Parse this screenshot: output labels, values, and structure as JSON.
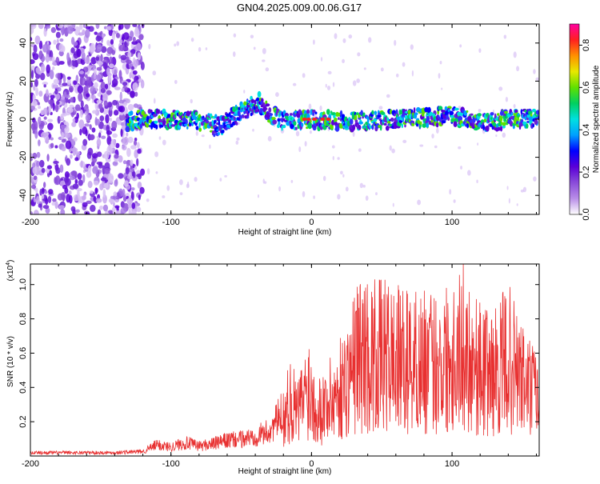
{
  "title": "GN04.2025.009.00.06.G17",
  "chart_data": [
    {
      "type": "heatmap",
      "xlabel": "Height of straight line (km)",
      "ylabel": "Frequency (Hz)",
      "xlim": [
        -200,
        162
      ],
      "ylim": [
        -50,
        50
      ],
      "xticks": [
        -200,
        -100,
        0,
        100
      ],
      "yticks": [
        -40,
        -20,
        0,
        20,
        40
      ],
      "colorbar": {
        "label": "Normalized spectral amplitude",
        "range": [
          0,
          0.9
        ],
        "ticks": [
          0.0,
          0.2,
          0.4,
          0.6,
          0.8
        ],
        "colors": [
          "#ffffff",
          "#b98ee8",
          "#8a4cd9",
          "#5a00d8",
          "#0000ff",
          "#00a0ff",
          "#00e0e0",
          "#00d060",
          "#60e000",
          "#e8e800",
          "#ff9000",
          "#ff2020",
          "#ff00a0"
        ]
      },
      "ridge": [
        {
          "x": -130,
          "f": -1
        },
        {
          "x": -120,
          "f": 0
        },
        {
          "x": -100,
          "f": 0
        },
        {
          "x": -80,
          "f": -1
        },
        {
          "x": -65,
          "f": -3
        },
        {
          "x": -55,
          "f": 2
        },
        {
          "x": -45,
          "f": 6
        },
        {
          "x": -38,
          "f": 9
        },
        {
          "x": -30,
          "f": 3
        },
        {
          "x": -20,
          "f": -1
        },
        {
          "x": 0,
          "f": 0
        },
        {
          "x": 20,
          "f": -1
        },
        {
          "x": 40,
          "f": -1
        },
        {
          "x": 60,
          "f": 0
        },
        {
          "x": 80,
          "f": 1
        },
        {
          "x": 100,
          "f": 2
        },
        {
          "x": 120,
          "f": -2
        },
        {
          "x": 140,
          "f": 0
        },
        {
          "x": 162,
          "f": 1
        }
      ]
    },
    {
      "type": "line",
      "xlabel": "Height of straight line (km)",
      "ylabel": "SNR (10 * v/v)",
      "exponent": "(x10",
      "exponent_power": "4",
      "exponent_close": ")",
      "xlim": [
        -200,
        162
      ],
      "ylim": [
        0,
        1.12
      ],
      "xticks": [
        -200,
        -100,
        0,
        100
      ],
      "yticks": [
        0.2,
        0.4,
        0.6,
        0.8,
        1.0
      ],
      "color": "#e83030",
      "envelope": [
        {
          "x": -200,
          "y": 0.03
        },
        {
          "x": -140,
          "y": 0.03
        },
        {
          "x": -120,
          "y": 0.04
        },
        {
          "x": -110,
          "y": 0.1
        },
        {
          "x": -100,
          "y": 0.08
        },
        {
          "x": -90,
          "y": 0.12
        },
        {
          "x": -80,
          "y": 0.09
        },
        {
          "x": -70,
          "y": 0.11
        },
        {
          "x": -60,
          "y": 0.14
        },
        {
          "x": -50,
          "y": 0.15
        },
        {
          "x": -40,
          "y": 0.18
        },
        {
          "x": -30,
          "y": 0.22
        },
        {
          "x": -20,
          "y": 0.4
        },
        {
          "x": -15,
          "y": 0.58
        },
        {
          "x": -10,
          "y": 0.45
        },
        {
          "x": -2,
          "y": 0.73
        },
        {
          "x": 5,
          "y": 0.48
        },
        {
          "x": 15,
          "y": 0.6
        },
        {
          "x": 25,
          "y": 0.78
        },
        {
          "x": 33,
          "y": 1.06
        },
        {
          "x": 45,
          "y": 1.04
        },
        {
          "x": 55,
          "y": 1.03
        },
        {
          "x": 65,
          "y": 0.98
        },
        {
          "x": 75,
          "y": 0.99
        },
        {
          "x": 85,
          "y": 0.96
        },
        {
          "x": 95,
          "y": 1.02
        },
        {
          "x": 108,
          "y": 1.13
        },
        {
          "x": 120,
          "y": 0.9
        },
        {
          "x": 130,
          "y": 0.86
        },
        {
          "x": 140,
          "y": 1.02
        },
        {
          "x": 150,
          "y": 0.78
        },
        {
          "x": 162,
          "y": 0.6
        }
      ]
    }
  ]
}
